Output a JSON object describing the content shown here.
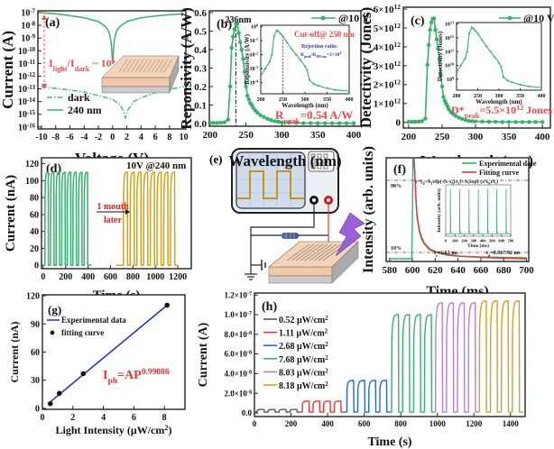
{
  "chart_data": [
    {
      "type": "line",
      "panel_label": "(a)",
      "xlabel": "Voltage (V)",
      "ylabel": "Current (A)",
      "xlim": [
        -10.5,
        10.3
      ],
      "ylim": [
        7e-17,
        1.4e-07
      ],
      "ylog": true,
      "xticks": [
        -10,
        -8,
        -6,
        -4,
        -2,
        0,
        2,
        4,
        6,
        8,
        10
      ],
      "xtick_labels": [
        "-10",
        "-8",
        "-6",
        "-4",
        "-2",
        "0",
        "2",
        "4",
        "6",
        "8",
        "10"
      ],
      "yticks": [
        1e-16,
        1e-15,
        1e-14,
        1e-13,
        1e-12,
        1e-11,
        1e-10,
        1e-09,
        1e-08,
        1e-07
      ],
      "ytick_labels": [
        "10^{-16}",
        "10^{-15}",
        "10^{-14}",
        "10^{-13}",
        "10^{-12}",
        "10^{-11}",
        "10^{-10}",
        "10^{-9}",
        "10^{-8}",
        "10^{-7}"
      ],
      "series": [
        {
          "name": "dark",
          "style": "dash-dot",
          "color": "#4dbb7a",
          "x": [
            -10,
            -8,
            -6,
            -4,
            -2,
            0,
            1,
            1.5,
            1.8,
            2.1,
            3,
            4,
            6,
            8,
            10
          ],
          "y": [
            1.5e-13,
            1.1e-13,
            8e-14,
            5.5e-14,
            3e-14,
            1.5e-14,
            6e-15,
            2e-15,
            5e-16,
            2e-15,
            1e-14,
            2e-14,
            5e-14,
            9e-14,
            1.5e-13
          ]
        },
        {
          "name": "240 nm",
          "style": "solid",
          "color": "#33b26b",
          "x": [
            -10,
            -8,
            -6,
            -4,
            -2,
            -1,
            -0.5,
            -0.2,
            -0.05,
            0,
            0.05,
            0.2,
            0.5,
            1,
            2,
            4,
            6,
            8,
            10
          ],
          "y": [
            1e-07,
            8e-08,
            6e-08,
            4e-08,
            2e-08,
            8e-09,
            3e-09,
            5e-10,
            3e-11,
            1e-11,
            3e-11,
            5e-10,
            3e-09,
            8e-09,
            2e-08,
            4e-08,
            5.5e-08,
            7e-08,
            8e-08
          ]
        }
      ],
      "annotations": {
        "ratio": "I_{light}/I_{dark} ~ 10^{6}"
      }
    },
    {
      "type": "line",
      "panel_label": "(b)",
      "xlabel": "Wavelength (nm)",
      "ylabel": "Reponsivity (A/W)",
      "xlim": [
        199,
        410
      ],
      "ylim": [
        -0.015,
        0.61
      ],
      "ylog": false,
      "xticks": [
        200,
        250,
        300,
        350,
        400
      ],
      "xtick_labels": [
        "200",
        "250",
        "300",
        "350",
        "400"
      ],
      "yticks": [
        0,
        0.1,
        0.2,
        0.3,
        0.4,
        0.5,
        0.6
      ],
      "ytick_labels": [
        "0.0",
        "0.1",
        "0.2",
        "0.3",
        "0.4",
        "0.5",
        "0.6"
      ],
      "series": [
        {
          "name": "@10 V",
          "color": "#33b26b",
          "markers": true,
          "x": [
            200,
            205,
            210,
            215,
            220,
            225,
            228,
            230,
            232,
            234,
            236,
            238,
            240,
            242,
            244,
            246,
            248,
            250,
            252,
            254,
            256,
            258,
            260,
            263,
            266,
            270,
            275,
            280,
            285,
            290,
            295,
            300,
            310,
            320,
            330,
            340,
            350,
            360,
            370,
            380,
            390,
            400
          ],
          "y": [
            0.003,
            0.003,
            0.003,
            0.004,
            0.006,
            0.02,
            0.2,
            0.41,
            0.47,
            0.51,
            0.54,
            0.54,
            0.49,
            0.44,
            0.4,
            0.35,
            0.28,
            0.2,
            0.15,
            0.13,
            0.11,
            0.1,
            0.085,
            0.07,
            0.058,
            0.045,
            0.035,
            0.025,
            0.018,
            0.012,
            0.009,
            0.006,
            0.004,
            0.003,
            0.002,
            0.002,
            0.002,
            0.001,
            0.001,
            0.001,
            0.001,
            0.001
          ]
        }
      ],
      "peak_wavelength": 236,
      "annotations": {
        "peak": "236nm",
        "rpeak": "R_{peak}=0.54 A/W"
      }
    },
    {
      "type": "line",
      "panel_label": "",
      "xlabel": "Wavelength (nm)",
      "ylabel": "Reponsivity (A/W)",
      "xlim": [
        200,
        400
      ],
      "ylim": [
        1.6e-05,
        1.26
      ],
      "ylog": true,
      "xticks": [
        200,
        250,
        300,
        350,
        400
      ],
      "xtick_labels": [
        "200",
        "250",
        "300",
        "350",
        "400"
      ],
      "yticks": [
        0.0001,
        0.001,
        0.01,
        0.1,
        1
      ],
      "ytick_labels": [
        "10^{-4}",
        "10^{-3}",
        "10^{-2}",
        "10^{-1}",
        "10^{0}"
      ],
      "series": [
        {
          "color": "#33b26b",
          "x": [
            200,
            210,
            220,
            225,
            230,
            236,
            240,
            245,
            250,
            260,
            270,
            280,
            290,
            300,
            305,
            310,
            320,
            330,
            350,
            370,
            400
          ],
          "y": [
            0.0003,
            0.001,
            0.003,
            0.01,
            0.2,
            0.54,
            0.45,
            0.3,
            0.2,
            0.07,
            0.025,
            0.01,
            0.004,
            0.0015,
            0.0008,
            0.00015,
            8e-05,
            6e-05,
            4e-05,
            3e-05,
            2.5e-05
          ]
        }
      ],
      "cutoff_wavelength": 250,
      "annotations": {
        "cutoff": "Cut-off@ 250 nm",
        "rejection_title": "Rejection ratio:",
        "rejection": "R_{peak}/R_{300 nm}=2×10^{4}"
      }
    },
    {
      "type": "line",
      "panel_label": "(c)",
      "xlabel": "Wavelength (nm)",
      "ylabel": "Detectivity (Jones)",
      "xlim": [
        192,
        412
      ],
      "ylim": [
        -300000000000.0,
        6100000000000.0
      ],
      "ylog": false,
      "xticks": [
        200,
        250,
        300,
        350,
        400
      ],
      "xtick_labels": [
        "200",
        "250",
        "300",
        "350",
        "400"
      ],
      "yticks": [
        0,
        1000000000000.0,
        2000000000000.0,
        3000000000000.0,
        4000000000000.0,
        5000000000000.0,
        6000000000000.0
      ],
      "ytick_labels": [
        "0",
        "1×10^{12}",
        "2×10^{12}",
        "3×10^{12}",
        "4×10^{12}",
        "5×10^{12}",
        "6×10^{12}"
      ],
      "series": [
        {
          "name": "@10 V",
          "color": "#33b26b",
          "markers": true,
          "x": [
            200,
            205,
            210,
            215,
            220,
            225,
            228,
            230,
            232,
            234,
            236,
            238,
            240,
            242,
            244,
            246,
            248,
            250,
            252,
            254,
            256,
            258,
            260,
            263,
            266,
            270,
            275,
            280,
            285,
            290,
            295,
            300,
            310,
            320,
            330,
            340,
            350,
            360,
            370,
            380,
            390,
            400
          ],
          "y": [
            30000000000.0,
            30000000000.0,
            30000000000.0,
            40000000000.0,
            60000000000.0,
            200000000000.0,
            3050000000000.0,
            4100000000000.0,
            4900000000000.0,
            5300000000000.0,
            5500000000000.0,
            5500000000000.0,
            4900000000000.0,
            4400000000000.0,
            3900000000000.0,
            3300000000000.0,
            2500000000000.0,
            1900000000000.0,
            1350000000000.0,
            1150000000000.0,
            1000000000000.0,
            850000000000.0,
            700000000000.0,
            550000000000.0,
            450000000000.0,
            350000000000.0,
            250000000000.0,
            180000000000.0,
            120000000000.0,
            80000000000.0,
            60000000000.0,
            50000000000.0,
            40000000000.0,
            30000000000.0,
            30000000000.0,
            20000000000.0,
            20000000000.0,
            20000000000.0,
            20000000000.0,
            20000000000.0,
            20000000000.0,
            20000000000.0
          ]
        }
      ],
      "annotations": {
        "dpeak": "D*_{peak}=5.5×10^{12} Jones"
      }
    },
    {
      "type": "line",
      "panel_label": "",
      "xlabel": "Wavelength (nm)",
      "ylabel": "Detectivity (Jones)",
      "xlim": [
        200,
        400
      ],
      "ylim": [
        160000000.0,
        12600000000000.0
      ],
      "ylog": true,
      "xticks": [
        200,
        250,
        300,
        350,
        400
      ],
      "xtick_labels": [
        "200",
        "250",
        "300",
        "350",
        "400"
      ],
      "yticks": [
        1000000000.0,
        10000000000.0,
        100000000000.0,
        1000000000000.0,
        10000000000000.0
      ],
      "ytick_labels": [
        "10^{9}",
        "10^{10}",
        "10^{11}",
        "10^{12}",
        "10^{13}"
      ],
      "series": [
        {
          "color": "#33b26b",
          "x": [
            200,
            210,
            220,
            225,
            230,
            236,
            240,
            245,
            250,
            260,
            270,
            280,
            290,
            300,
            305,
            310,
            320,
            330,
            350,
            370,
            400
          ],
          "y": [
            3000000000.0,
            10000000000.0,
            30000000000.0,
            100000000000.0,
            2000000000000.0,
            5500000000000.0,
            4500000000000.0,
            3000000000000.0,
            2000000000000.0,
            700000000000.0,
            250000000000.0,
            100000000000.0,
            40000000000.0,
            15000000000.0,
            8000000000.0,
            1500000000.0,
            800000000.0,
            600000000.0,
            400000000.0,
            300000000.0,
            250000000.0
          ]
        }
      ]
    },
    {
      "type": "line",
      "panel_label": "(d)",
      "xlabel": "Time (s)",
      "ylabel": "Current (nA)",
      "xlim": [
        -15,
        1320
      ],
      "ylim": [
        -4,
        127
      ],
      "ylog": false,
      "xticks": [
        0,
        200,
        400,
        600,
        800,
        1000,
        1200
      ],
      "xtick_labels": [
        "0",
        "200",
        "400",
        "600",
        "800",
        "1000",
        "1200"
      ],
      "yticks": [
        0,
        20,
        40,
        60,
        80,
        100,
        120
      ],
      "ytick_labels": [
        "0",
        "20",
        "40",
        "60",
        "80",
        "100",
        "120"
      ],
      "segments": [
        {
          "color": "#33b26b",
          "from": 0,
          "to": 430,
          "start": 15,
          "period": 50,
          "count": 8,
          "on": 110,
          "base": 0
        },
        {
          "color": "#d4a017",
          "from": 650,
          "to": 1205,
          "start": 715,
          "period": 60,
          "count": 8,
          "on": 110,
          "base": 0
        }
      ],
      "annotations": {
        "condition": "10V @240 nm",
        "later_1": "1 mouth",
        "later_2": "later"
      }
    },
    {
      "type": "line",
      "panel_label": "(f)",
      "xlabel": "Time (ms)",
      "ylabel": "Intensity (arb. units)",
      "xlim": [
        577,
        702
      ],
      "ylim": [
        0,
        1.15
      ],
      "ylog": false,
      "xticks": [
        580,
        600,
        620,
        640,
        660,
        680,
        700
      ],
      "xtick_labels": [
        "580",
        "600",
        "620",
        "640",
        "660",
        "680",
        "700"
      ],
      "yticks": [],
      "ytick_labels": [],
      "levels": [
        0.9,
        0.1
      ],
      "series": [
        {
          "name": "Experimental date",
          "color": "#33b26b",
          "x": [
            580,
            599.5,
            600,
            600.5,
            601,
            602,
            603,
            604,
            606,
            608,
            610,
            615,
            620,
            630,
            640,
            660,
            680,
            700
          ],
          "y": [
            0.03,
            0.03,
            0.5,
            1.15,
            1.15,
            1.0,
            0.7,
            0.5,
            0.33,
            0.25,
            0.2,
            0.13,
            0.1,
            0.07,
            0.06,
            0.05,
            0.045,
            0.04
          ]
        },
        {
          "name": "Fitting curve",
          "color": "#ee3333",
          "x": [
            601.5,
            602,
            603,
            604,
            606,
            608,
            610,
            615,
            620,
            630,
            640,
            660,
            680,
            700
          ],
          "y": [
            1.15,
            1.0,
            0.72,
            0.52,
            0.35,
            0.27,
            0.21,
            0.14,
            0.11,
            0.08,
            0.06,
            0.045,
            0.035,
            0.03
          ]
        }
      ],
      "annotations": {
        "p90": "90%",
        "p10": "10%",
        "formula": "y=y_{0}+A_{1}exp(-(x-x_{0})/t_{1})+A_{2}exp(-(x-x_{0})/t_{2})",
        "tr": "t_{r}=1.63 ms",
        "td": "t_{d}=0.917/92 ms"
      }
    },
    {
      "type": "line",
      "panel_label": "",
      "xlabel": "Time (ms)",
      "ylabel": "Intensity (arb. units)",
      "xlim": [
        0,
        700
      ],
      "ylim": [
        0,
        1.1
      ],
      "ylog": false,
      "xticks": [
        0,
        100,
        200,
        300,
        400,
        500,
        600,
        700
      ],
      "xtick_labels": [
        "0",
        "100",
        "200",
        "300",
        "400",
        "500",
        "600",
        "700"
      ],
      "yticks": [],
      "ytick_labels": [],
      "spike_times": [
        50,
        150,
        250,
        350,
        450,
        550,
        650
      ],
      "spike_level": 1.0,
      "base_level": 0.05,
      "color": "#33b26b"
    },
    {
      "type": "scatter",
      "panel_label": "(g)",
      "xlabel": "Light Intensity (μW/cm^{2})",
      "ylabel": "Current (nA)",
      "xlim": [
        0,
        9.35
      ],
      "ylim": [
        -1,
        121
      ],
      "ylog": false,
      "xticks": [
        0,
        2,
        4,
        6,
        8
      ],
      "xtick_labels": [
        "0",
        "2",
        "4",
        "6",
        "8"
      ],
      "yticks": [
        0,
        30,
        60,
        90,
        120
      ],
      "ytick_labels": [
        "0",
        "30",
        "60",
        "90",
        "120"
      ],
      "points": {
        "x": [
          0.52,
          1.11,
          2.68,
          8.18
        ],
        "y": [
          5,
          16,
          37,
          110
        ]
      },
      "fit_line": {
        "x": [
          0.52,
          8.18
        ],
        "y": [
          7,
          110
        ]
      },
      "legend": [
        {
          "label": "Experimental data",
          "color": "#1a2fd6"
        },
        {
          "label": "fitting curve",
          "color": "#111111"
        }
      ],
      "annotations": {
        "fit": "I_{ph}=AP^{0.99086}"
      }
    },
    {
      "type": "line",
      "panel_label": "(h)",
      "xlabel": "Time (s)",
      "ylabel": "Current (A)",
      "xlim": [
        0,
        1480
      ],
      "ylim": [
        -3.7e-09,
        1.22e-07
      ],
      "ylog": false,
      "xticks": [
        0,
        200,
        400,
        600,
        800,
        1000,
        1200,
        1400
      ],
      "xtick_labels": [
        "0",
        "200",
        "400",
        "600",
        "800",
        "1000",
        "1200",
        "1400"
      ],
      "yticks": [
        0,
        2e-08,
        4e-08,
        6e-08,
        8e-08,
        1e-07,
        1.2e-07
      ],
      "ytick_labels": [
        "0.0",
        "2.0×10^{-8}",
        "4.0×10^{-8}",
        "6.0×10^{-8}",
        "8.0×10^{-8}",
        "1.0×10^{-7}",
        "1.2×10^{-7}"
      ],
      "segments": [
        {
          "name": "0.52 μW/cm^{2}",
          "color": "#555555",
          "from": 0,
          "to": 252,
          "start": 15,
          "period": 60,
          "count": 4,
          "on": 3.5e-09,
          "base": 8e-10
        },
        {
          "name": "1.11 μW/cm^{2}",
          "color": "#ee3333",
          "from": 252,
          "to": 495,
          "start": 262,
          "period": 58,
          "count": 4,
          "on": 1.2e-08,
          "base": 8e-10
        },
        {
          "name": "2.68 μW/cm^{2}",
          "color": "#2266dd",
          "from": 495,
          "to": 742,
          "start": 505,
          "period": 60,
          "count": 4,
          "on": 3.3e-08,
          "base": 8e-10
        },
        {
          "name": "7.68 μW/cm^{2}",
          "color": "#33b26b",
          "from": 742,
          "to": 985,
          "start": 750,
          "period": 60,
          "count": 4,
          "on": 1e-07,
          "base": 8e-10
        },
        {
          "name": "8.03 μW/cm^{2}",
          "color": "#b57edc",
          "from": 985,
          "to": 1225,
          "start": 990,
          "period": 60,
          "count": 4,
          "on": 1.12e-07,
          "base": 8e-10
        },
        {
          "name": "8.18 μW/cm^{2}",
          "color": "#d4a017",
          "from": 1225,
          "to": 1470,
          "start": 1230,
          "period": 60,
          "count": 4,
          "on": 1.14e-07,
          "base": 8e-10
        }
      ]
    }
  ],
  "schematic": {
    "panel_label": "(e)"
  }
}
